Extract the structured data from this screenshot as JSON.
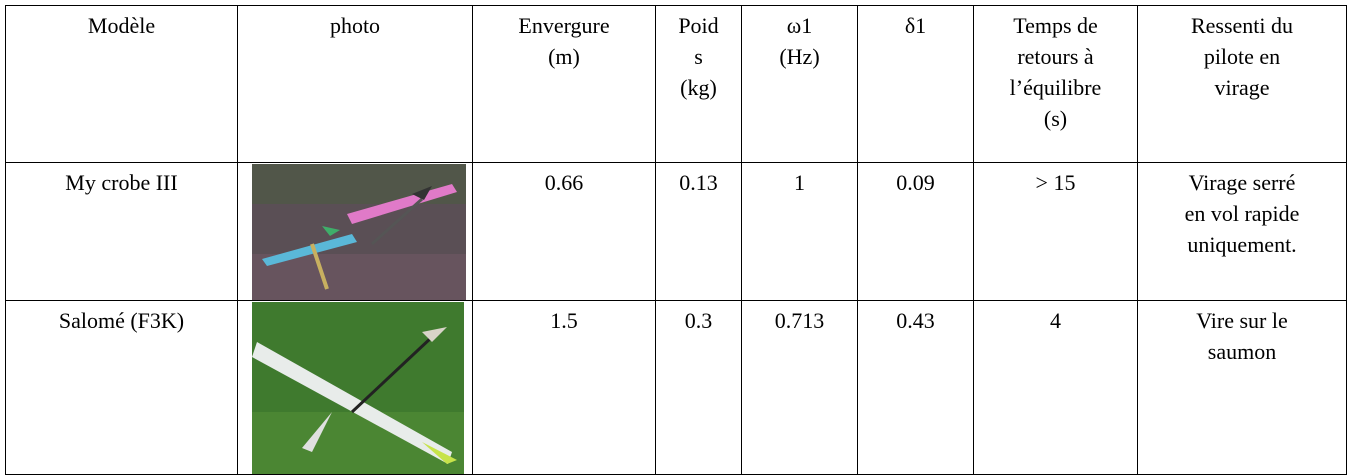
{
  "table": {
    "header": [
      [
        "Modèle"
      ],
      [
        "photo"
      ],
      [
        "Envergure",
        "(m)"
      ],
      [
        "Poid",
        "s",
        "(kg)"
      ],
      [
        "ω1",
        "(Hz)"
      ],
      [
        "δ1"
      ],
      [
        "Temps de",
        "retours à",
        "l’équilibre",
        "(s)"
      ],
      [
        "Ressenti du",
        "pilote en",
        "virage"
      ]
    ],
    "rows": [
      [
        [
          "My crobe III"
        ],
        null,
        [
          "0.66"
        ],
        [
          "0.13"
        ],
        [
          "1"
        ],
        [
          "0.09"
        ],
        [
          "> 15"
        ],
        [
          "Virage serré",
          "en vol rapide",
          "uniquement."
        ]
      ],
      [
        [
          "Salomé (F3K)"
        ],
        null,
        [
          "1.5"
        ],
        [
          "0.3"
        ],
        [
          "0.713"
        ],
        [
          "0.43"
        ],
        [
          "4"
        ],
        [
          "Vire sur le",
          "saumon"
        ]
      ]
    ]
  }
}
